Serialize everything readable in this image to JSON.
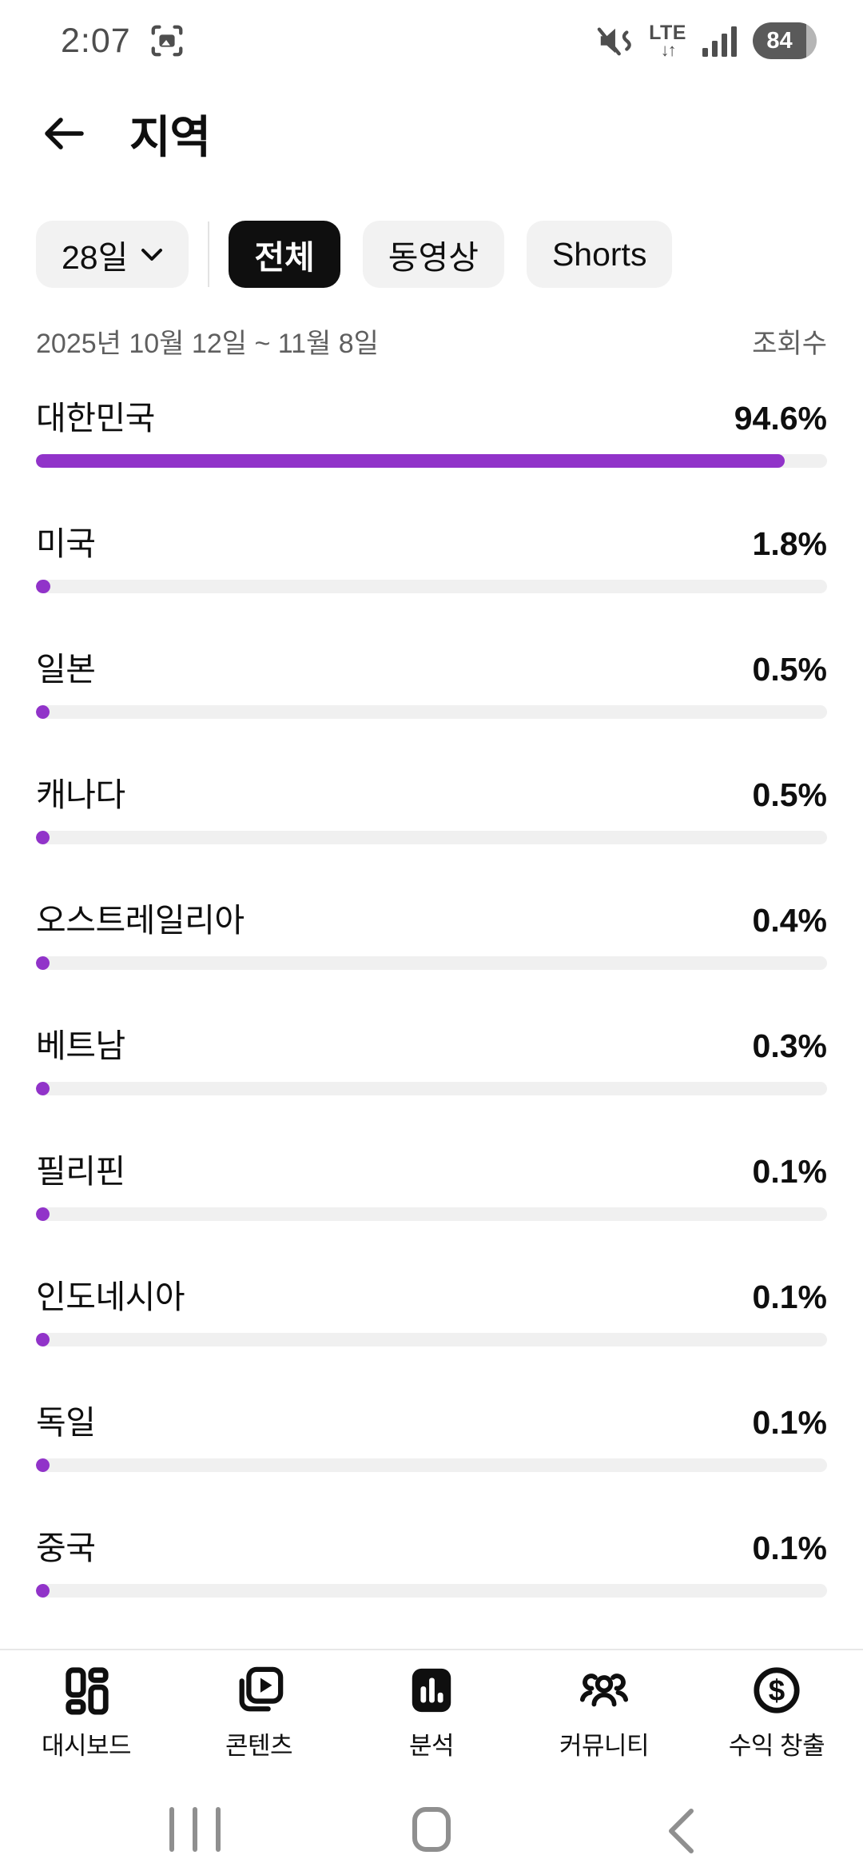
{
  "colors": {
    "accent": "#9133c9",
    "track": "#f0f0f0",
    "chip_bg": "#f2f2f2",
    "chip_selected_bg": "#0f0f0f",
    "text_secondary": "#5f5f5f"
  },
  "status_bar": {
    "time": "2:07",
    "network": "LTE",
    "network_arrows": "↓↑",
    "battery_percent": "84"
  },
  "header": {
    "title": "지역"
  },
  "filters": {
    "period_label": "28일",
    "tabs": [
      {
        "label": "전체",
        "selected": true
      },
      {
        "label": "동영상",
        "selected": false
      },
      {
        "label": "Shorts",
        "selected": false
      }
    ]
  },
  "meta": {
    "date_range": "2025년 10월 12일 ~ 11월 8일",
    "metric_label": "조회수"
  },
  "chart_data": {
    "type": "bar",
    "orientation": "horizontal",
    "title": "지역",
    "metric": "조회수",
    "unit": "%",
    "xlim": [
      0,
      100
    ],
    "categories": [
      "대한민국",
      "미국",
      "일본",
      "캐나다",
      "오스트레일리아",
      "베트남",
      "필리핀",
      "인도네시아",
      "독일",
      "중국"
    ],
    "values": [
      94.6,
      1.8,
      0.5,
      0.5,
      0.4,
      0.3,
      0.1,
      0.1,
      0.1,
      0.1
    ]
  },
  "bottom_nav": {
    "items": [
      {
        "label": "대시보드",
        "icon": "dashboard-icon",
        "active": false
      },
      {
        "label": "콘텐츠",
        "icon": "content-icon",
        "active": false
      },
      {
        "label": "분석",
        "icon": "analytics-icon",
        "active": true
      },
      {
        "label": "커뮤니티",
        "icon": "community-icon",
        "active": false
      },
      {
        "label": "수익 창출",
        "icon": "monetization-icon",
        "active": false
      }
    ]
  },
  "gesture_nav": {
    "items": [
      "recents",
      "home",
      "back"
    ]
  }
}
